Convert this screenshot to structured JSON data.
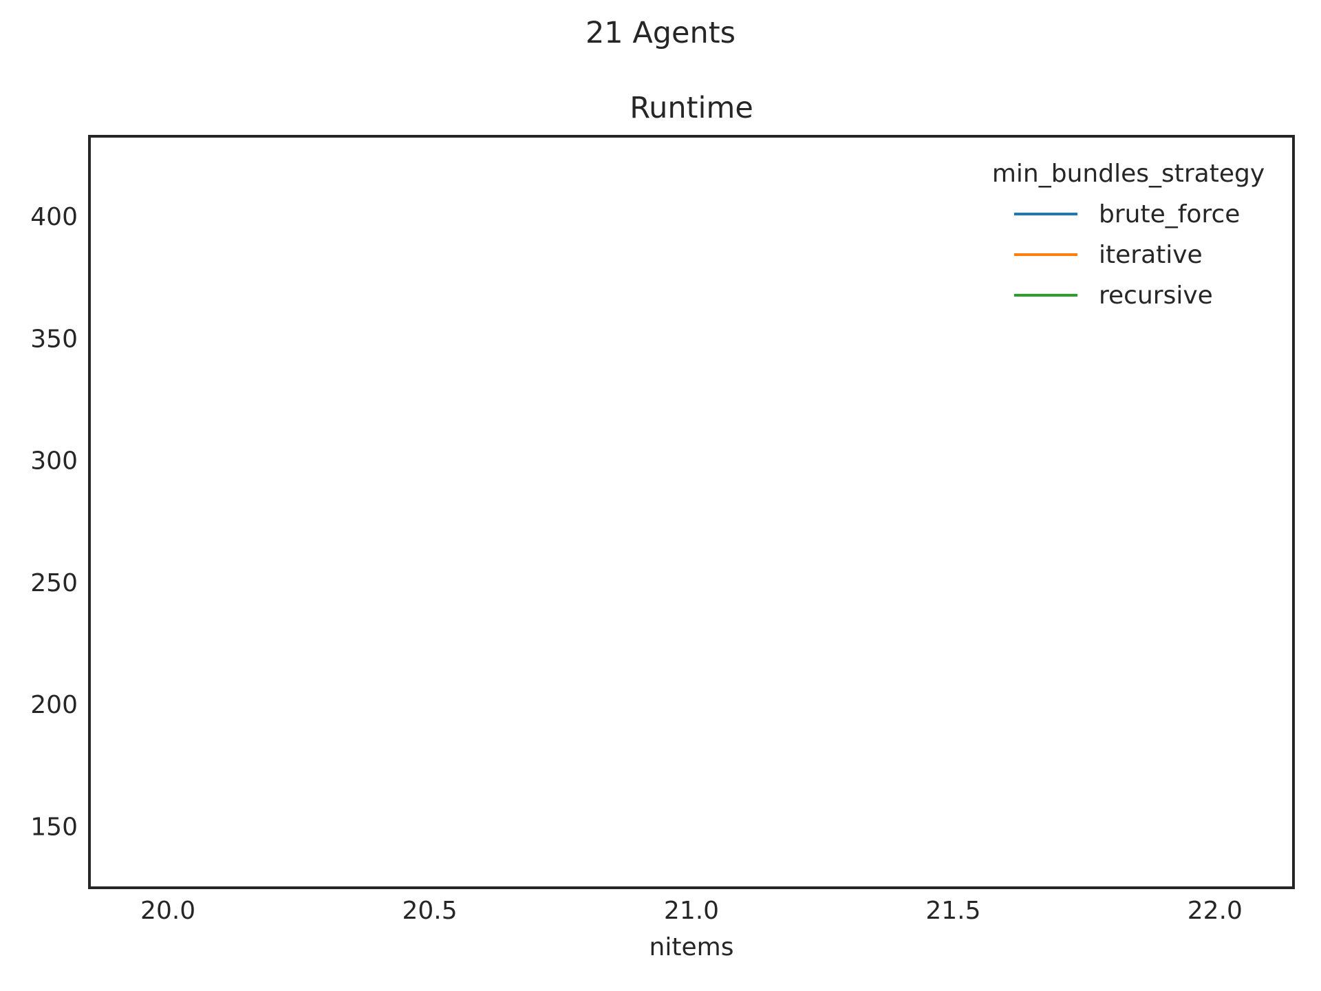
{
  "chart_data": {
    "type": "line",
    "suptitle": "21 Agents",
    "title": "Runtime",
    "xlabel": "nitems",
    "ylabel": "",
    "xlim": [
      19.85,
      22.15
    ],
    "ylim": [
      125,
      433
    ],
    "x_ticks": [
      20.0,
      20.5,
      21.0,
      21.5,
      22.0
    ],
    "x_tick_labels": [
      "20.0",
      "20.5",
      "21.0",
      "21.5",
      "22.0"
    ],
    "y_ticks": [
      150,
      200,
      250,
      300,
      350,
      400
    ],
    "y_tick_labels": [
      "150",
      "200",
      "250",
      "300",
      "350",
      "400"
    ],
    "grid": false,
    "legend": {
      "title": "min_bundles_strategy",
      "placement": "top-right",
      "entries": [
        "brute_force",
        "iterative",
        "recursive"
      ]
    },
    "series": [
      {
        "name": "brute_force",
        "color": "#1f77b4",
        "x": [],
        "y": []
      },
      {
        "name": "iterative",
        "color": "#ff7f0e",
        "x": [],
        "y": []
      },
      {
        "name": "recursive",
        "color": "#2ca02c",
        "x": [],
        "y": []
      }
    ]
  }
}
